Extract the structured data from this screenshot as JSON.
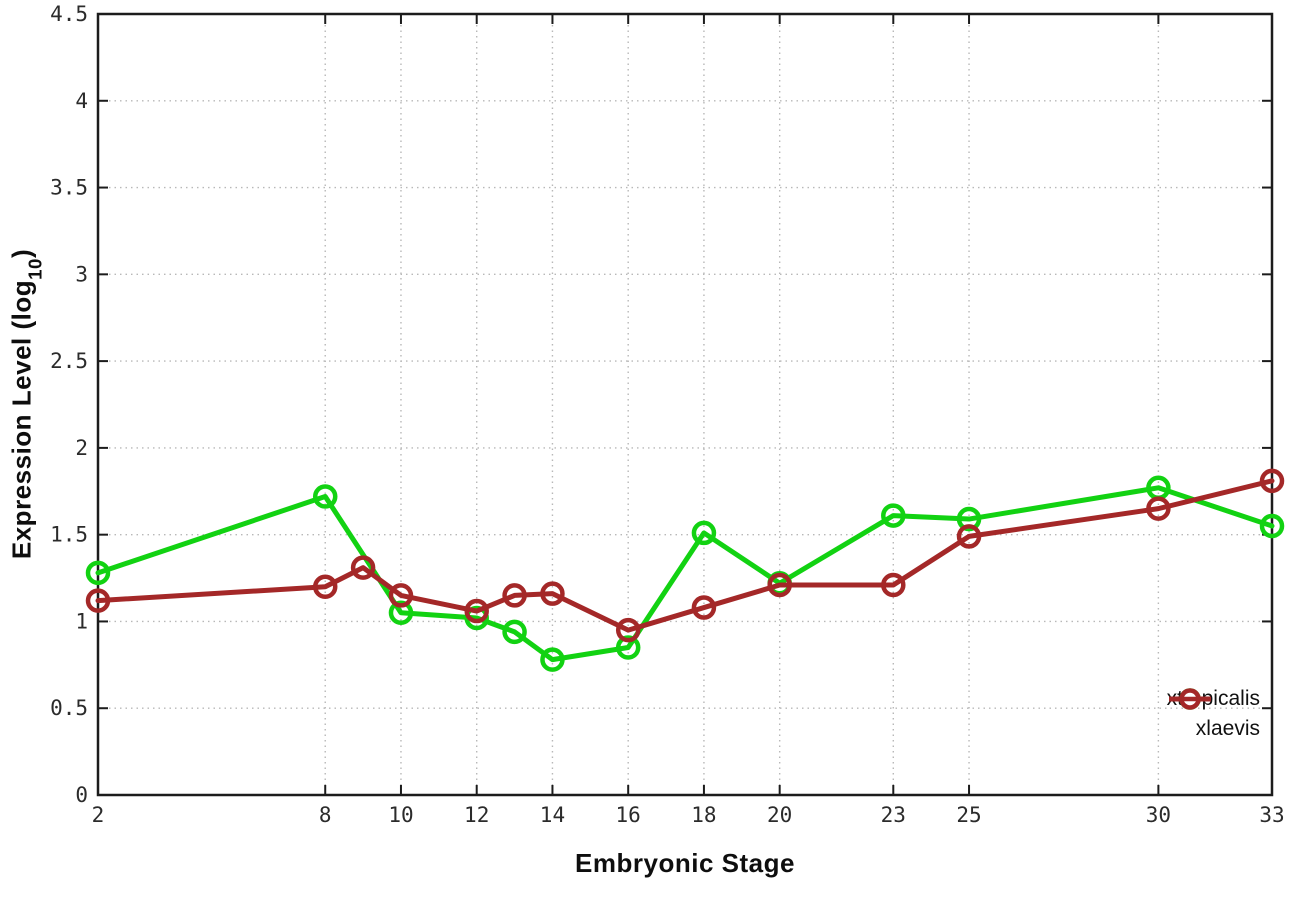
{
  "chart_data": {
    "type": "line",
    "title": "",
    "xlabel": "Embryonic Stage",
    "ylabel": "Expression Level (log10)",
    "ylabel_parts": {
      "main": "Expression Level (log",
      "sub": "10",
      "suffix": ")"
    },
    "xlim": [
      2,
      33
    ],
    "ylim": [
      0,
      4.5
    ],
    "grid": true,
    "grid_style": "dotted",
    "legend_position": "bottom-right",
    "x_ticks": [
      2,
      8,
      10,
      12,
      14,
      16,
      18,
      20,
      23,
      25,
      30,
      33
    ],
    "x_tick_labels": [
      "2",
      "8",
      "10",
      "12",
      "14",
      "16",
      "18",
      "20",
      "23",
      "25",
      "30",
      "33"
    ],
    "y_ticks": [
      0,
      0.5,
      1,
      1.5,
      2,
      2.5,
      3,
      3.5,
      4,
      4.5
    ],
    "y_tick_labels": [
      "0",
      "0.5",
      "1",
      "1.5",
      "2",
      "2.5",
      "3",
      "3.5",
      "4",
      "4.5"
    ],
    "series": [
      {
        "name": "xtropicalis",
        "color": "#12d212",
        "x": [
          2,
          8,
          10,
          12,
          13,
          14,
          16,
          18,
          20,
          23,
          25,
          30,
          33
        ],
        "y": [
          1.28,
          1.72,
          1.05,
          1.02,
          0.94,
          0.78,
          0.85,
          1.51,
          1.22,
          1.61,
          1.59,
          1.77,
          1.55
        ]
      },
      {
        "name": "xlaevis",
        "color": "#a42828",
        "x": [
          2,
          8,
          9,
          10,
          12,
          13,
          14,
          16,
          18,
          20,
          23,
          25,
          30,
          33
        ],
        "y": [
          1.12,
          1.2,
          1.31,
          1.15,
          1.06,
          1.15,
          1.16,
          0.95,
          1.08,
          1.21,
          1.21,
          1.49,
          1.65,
          1.81
        ]
      }
    ],
    "colors": {
      "border": "#1c1c1c",
      "grid": "#b8b8b8",
      "tick_text": "#2b2b2b"
    }
  }
}
